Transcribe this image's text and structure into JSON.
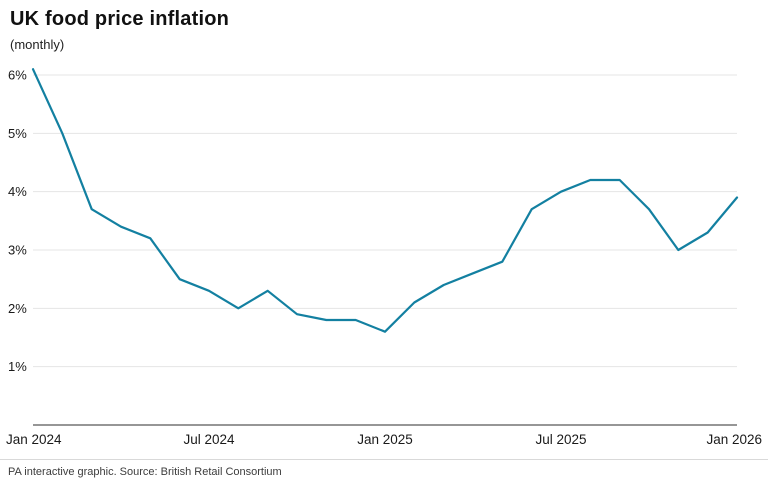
{
  "header": {
    "title": "UK food price inflation",
    "subtitle": "(monthly)"
  },
  "footer": {
    "credit": "PA interactive graphic. Source: British Retail Consortium"
  },
  "chart_data": {
    "type": "line",
    "title": "UK food price inflation",
    "subtitle": "(monthly)",
    "x": [
      "Jan 2024",
      "Feb 2024",
      "Mar 2024",
      "Apr 2024",
      "May 2024",
      "Jun 2024",
      "Jul 2024",
      "Aug 2024",
      "Sep 2024",
      "Oct 2024",
      "Nov 2024",
      "Dec 2024",
      "Jan 2025",
      "Feb 2025",
      "Mar 2025",
      "Apr 2025",
      "May 2025",
      "Jun 2025",
      "Jul 2025",
      "Aug 2025",
      "Sep 2025",
      "Oct 2025",
      "Nov 2025",
      "Dec 2025",
      "Jan 2026"
    ],
    "values": [
      6.1,
      5.0,
      3.7,
      3.4,
      3.2,
      2.5,
      2.3,
      2.0,
      2.3,
      1.9,
      1.8,
      1.8,
      1.6,
      2.1,
      2.4,
      2.6,
      2.8,
      3.7,
      4.0,
      4.2,
      4.2,
      3.7,
      3.0,
      3.3,
      3.9
    ],
    "xlabel": "",
    "ylabel": "",
    "ylim": [
      0,
      6.3
    ],
    "yticks": [
      1,
      2,
      3,
      4,
      5,
      6
    ],
    "ytick_labels": [
      "1%",
      "2%",
      "3%",
      "4%",
      "5%",
      "6%"
    ],
    "xticks": [
      0,
      6,
      12,
      18,
      24
    ],
    "xtick_labels": [
      "Jan 2024",
      "Jul 2024",
      "Jan 2025",
      "Jul 2025",
      "Jan 2026"
    ],
    "grid": true,
    "legend": false,
    "colors": {
      "line": "#1380A1",
      "grid": "#e4e4e4",
      "axis": "#2e2e2e",
      "text": "#1a1a1a"
    },
    "source": "PA interactive graphic. Source: British Retail Consortium"
  }
}
